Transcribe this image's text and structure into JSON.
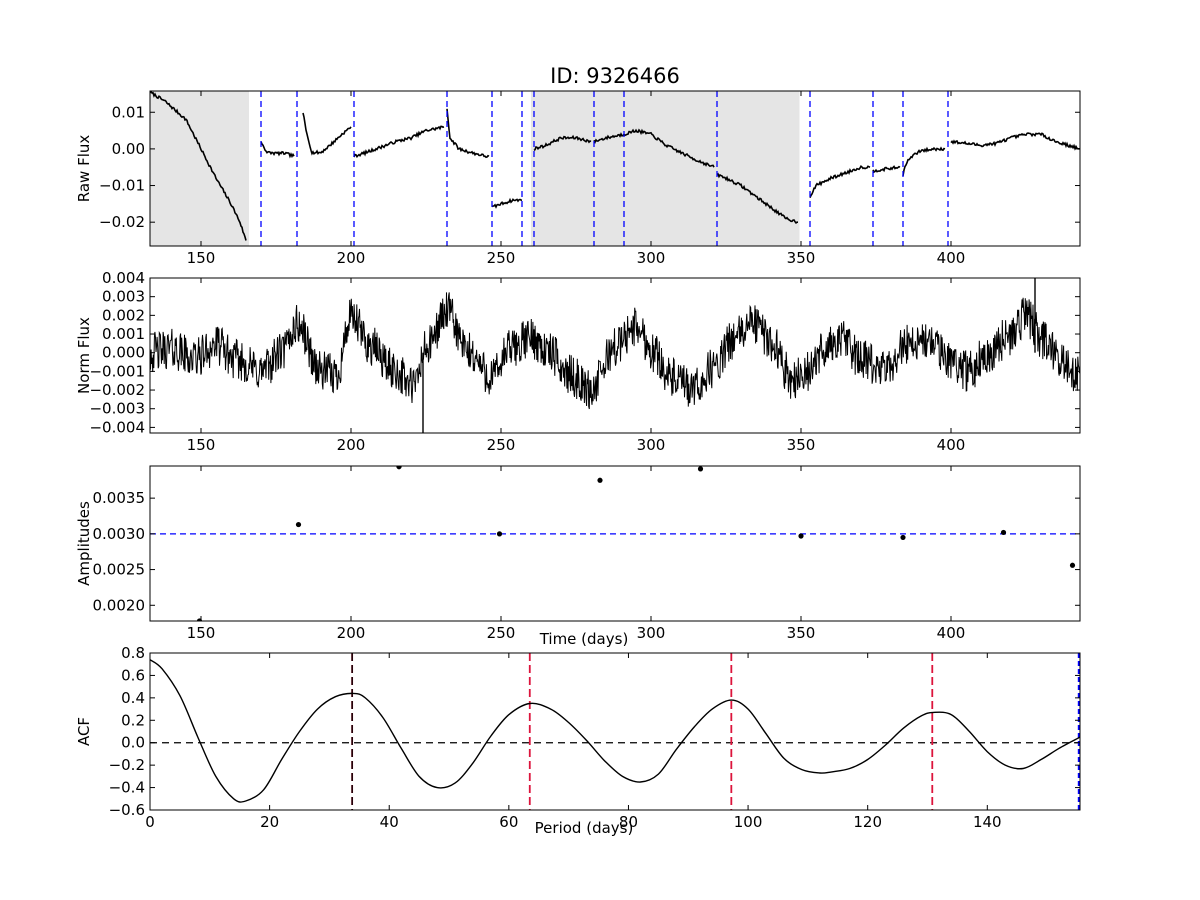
{
  "title": "ID: 9326466",
  "chart_data": [
    {
      "type": "line",
      "panel": "raw_flux",
      "ylabel": "Raw Flux",
      "xlim": [
        133,
        443
      ],
      "ylim": [
        -0.0265,
        0.0158
      ],
      "xticks": [
        150,
        200,
        250,
        300,
        350,
        400
      ],
      "yticks": [
        -0.02,
        -0.01,
        0.0,
        0.01
      ],
      "ytick_labels": [
        "−0.02",
        "−0.01",
        "0.00",
        "0.01"
      ],
      "shaded_ranges": [
        [
          133,
          166
        ],
        [
          260,
          349.5
        ]
      ],
      "line_color": "#000000",
      "shade_color": "#e5e5e5",
      "vline_color": "#0000ff",
      "quarter_boundaries": [
        170,
        182,
        201,
        232,
        247,
        257,
        261,
        281,
        291,
        322,
        353,
        374,
        384,
        399
      ],
      "segments": [
        {
          "x": [
            133,
            138,
            145,
            150,
            155,
            160,
            163,
            165
          ],
          "y": [
            0.0155,
            0.013,
            0.008,
            0.0,
            -0.008,
            -0.015,
            -0.02,
            -0.025
          ]
        },
        {
          "x": [
            170,
            172,
            175,
            178,
            181
          ],
          "y": [
            0.002,
            -0.001,
            -0.0012,
            -0.0012,
            -0.002
          ]
        },
        {
          "x": [
            184,
            185,
            187,
            190,
            193,
            197,
            200
          ],
          "y": [
            0.01,
            0.005,
            -0.001,
            -0.001,
            0.001,
            0.004,
            0.006
          ]
        },
        {
          "x": [
            201,
            205,
            210,
            215,
            220,
            225,
            231
          ],
          "y": [
            -0.002,
            -0.001,
            0.0005,
            0.002,
            0.003,
            0.005,
            0.006
          ]
        },
        {
          "x": [
            232,
            233,
            236,
            240,
            245,
            246
          ],
          "y": [
            0.011,
            0.003,
            0.0,
            -0.001,
            -0.002,
            -0.002
          ]
        },
        {
          "x": [
            247,
            250,
            254,
            257
          ],
          "y": [
            -0.016,
            -0.015,
            -0.014,
            -0.014
          ]
        },
        {
          "x": [
            261,
            265,
            270,
            275,
            280
          ],
          "y": [
            0.0,
            0.001,
            0.003,
            0.003,
            0.002
          ]
        },
        {
          "x": [
            281,
            285,
            291
          ],
          "y": [
            0.002,
            0.003,
            0.004
          ]
        },
        {
          "x": [
            291,
            295,
            300,
            305,
            310,
            315,
            321
          ],
          "y": [
            0.004,
            0.005,
            0.004,
            0.001,
            -0.001,
            -0.003,
            -0.005
          ]
        },
        {
          "x": [
            322,
            325,
            330,
            335,
            340,
            345,
            349
          ],
          "y": [
            -0.007,
            -0.008,
            -0.01,
            -0.013,
            -0.016,
            -0.019,
            -0.02
          ]
        },
        {
          "x": [
            353,
            355,
            360,
            365,
            370,
            373
          ],
          "y": [
            -0.013,
            -0.01,
            -0.008,
            -0.0065,
            -0.005,
            -0.005
          ]
        },
        {
          "x": [
            374,
            378,
            383
          ],
          "y": [
            -0.006,
            -0.0055,
            -0.005
          ]
        },
        {
          "x": [
            384,
            385,
            387,
            390,
            395,
            398
          ],
          "y": [
            -0.007,
            -0.004,
            -0.002,
            -0.0005,
            0.0,
            0.0
          ]
        },
        {
          "x": [
            400,
            405,
            410,
            415,
            420,
            425,
            430,
            435,
            443
          ],
          "y": [
            0.002,
            0.0015,
            0.001,
            0.0015,
            0.003,
            0.004,
            0.004,
            0.002,
            0.0
          ]
        }
      ]
    },
    {
      "type": "line",
      "panel": "norm_flux",
      "ylabel": "Norm Flux",
      "xlim": [
        133,
        443
      ],
      "ylim": [
        -0.0043,
        0.004
      ],
      "xticks": [
        150,
        200,
        250,
        300,
        350,
        400
      ],
      "yticks": [
        -0.004,
        -0.003,
        -0.002,
        -0.001,
        0.0,
        0.001,
        0.002,
        0.003,
        0.004
      ],
      "ytick_labels": [
        "−0.004",
        "−0.003",
        "−0.002",
        "−0.001",
        "0.000",
        "0.001",
        "0.002",
        "0.003",
        "0.004"
      ],
      "line_color": "#000000",
      "x": [
        133,
        140,
        148,
        155,
        162,
        170,
        177,
        182,
        190,
        195,
        200,
        207,
        214,
        221,
        225,
        232,
        239,
        247,
        253,
        260,
        266,
        273,
        280,
        288,
        295,
        301,
        307,
        314,
        321,
        328,
        334,
        340,
        347,
        353,
        358,
        364,
        370,
        378,
        385,
        392,
        399,
        406,
        412,
        418,
        425,
        431,
        437,
        443
      ],
      "y": [
        0.0,
        0.0002,
        -0.0003,
        0.0004,
        -0.0004,
        -0.001,
        0.0,
        0.0015,
        -0.001,
        -0.0012,
        0.0018,
        0.0003,
        -0.0009,
        -0.0018,
        0.0002,
        0.0022,
        0.0,
        -0.0013,
        0.0002,
        0.0008,
        0.0,
        -0.0012,
        -0.002,
        0.0003,
        0.0014,
        0.0,
        -0.0014,
        -0.002,
        -0.0008,
        0.0008,
        0.0016,
        0.0006,
        -0.0014,
        -0.001,
        0.0003,
        0.0007,
        -0.0004,
        -0.001,
        0.0005,
        0.0006,
        -0.0003,
        -0.001,
        0.0,
        0.0007,
        0.0019,
        0.0006,
        -0.0006,
        -0.0012
      ],
      "spikes": [
        {
          "x": 224,
          "y": -0.0045
        },
        {
          "x": 428,
          "y": 0.004
        }
      ]
    },
    {
      "type": "scatter",
      "panel": "amplitudes",
      "ylabel": "Amplitudes",
      "xlabel": "Time (days)",
      "xlim": [
        133,
        443
      ],
      "ylim": [
        0.00178,
        0.00395
      ],
      "xticks": [
        150,
        200,
        250,
        300,
        350,
        400
      ],
      "yticks": [
        0.002,
        0.0025,
        0.003,
        0.0035
      ],
      "ytick_labels": [
        "0.0020",
        "0.0025",
        "0.0030",
        "0.0035"
      ],
      "reference_line": 0.003,
      "reference_color": "#0000ff",
      "points": [
        {
          "x": 149.5,
          "y": 0.00178
        },
        {
          "x": 182.5,
          "y": 0.00313
        },
        {
          "x": 216,
          "y": 0.00394
        },
        {
          "x": 249.5,
          "y": 0.003
        },
        {
          "x": 283,
          "y": 0.00375
        },
        {
          "x": 316.5,
          "y": 0.00391
        },
        {
          "x": 350,
          "y": 0.00297
        },
        {
          "x": 384,
          "y": 0.00295
        },
        {
          "x": 417.5,
          "y": 0.00302
        },
        {
          "x": 440.5,
          "y": 0.00256
        }
      ]
    },
    {
      "type": "line",
      "panel": "acf",
      "ylabel": "ACF",
      "xlabel": "Period (days)",
      "xlim": [
        0,
        155.5
      ],
      "ylim": [
        -0.6,
        0.8
      ],
      "xticks": [
        0,
        20,
        40,
        60,
        80,
        100,
        120,
        140
      ],
      "yticks": [
        -0.6,
        -0.4,
        -0.2,
        0.0,
        0.2,
        0.4,
        0.6,
        0.8
      ],
      "ytick_labels": [
        "−0.6",
        "−0.4",
        "−0.2",
        "0.0",
        "0.2",
        "0.4",
        "0.6",
        "0.8"
      ],
      "zero_line_color": "#000000",
      "peak_line_color": "#dc143c",
      "period_line": 33.8,
      "peaks": [
        33.8,
        63.5,
        97.2,
        130.8
      ],
      "edge_line": 155.3,
      "x": [
        0,
        2,
        5,
        8,
        11,
        14,
        16,
        19,
        22,
        25,
        28,
        31,
        34,
        36,
        39,
        42,
        45,
        48,
        51,
        54,
        57,
        60,
        63.5,
        67,
        70,
        73,
        76,
        79,
        82,
        85,
        88,
        91,
        94,
        97.2,
        100,
        103,
        106,
        109,
        112,
        114,
        117,
        120,
        123,
        126,
        129,
        131,
        134,
        137,
        140,
        143,
        146,
        149,
        152,
        155.5
      ],
      "y": [
        0.74,
        0.66,
        0.42,
        0.05,
        -0.3,
        -0.5,
        -0.52,
        -0.42,
        -0.15,
        0.1,
        0.3,
        0.41,
        0.44,
        0.4,
        0.22,
        -0.05,
        -0.3,
        -0.4,
        -0.36,
        -0.18,
        0.06,
        0.25,
        0.35,
        0.3,
        0.18,
        0.02,
        -0.16,
        -0.3,
        -0.35,
        -0.28,
        -0.06,
        0.14,
        0.3,
        0.38,
        0.3,
        0.08,
        -0.14,
        -0.24,
        -0.27,
        -0.26,
        -0.23,
        -0.15,
        -0.02,
        0.13,
        0.24,
        0.27,
        0.25,
        0.1,
        -0.08,
        -0.2,
        -0.23,
        -0.15,
        -0.05,
        0.05
      ]
    }
  ]
}
